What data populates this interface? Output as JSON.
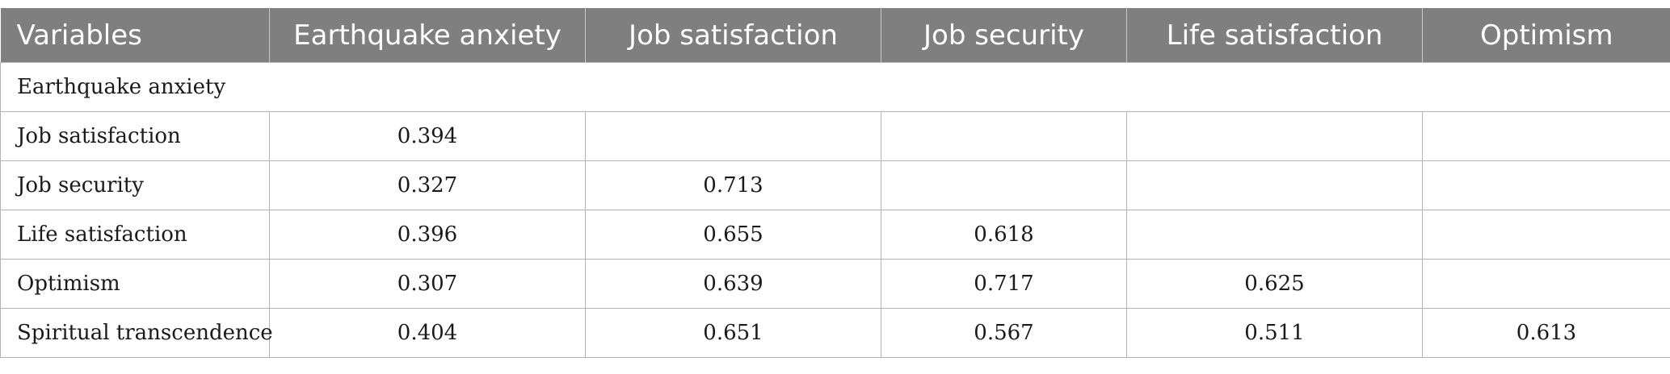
{
  "table": {
    "headers": [
      "Variables",
      "Earthquake anxiety",
      "Job satisfaction",
      "Job security",
      "Life satisfaction",
      "Optimism"
    ],
    "rows": [
      {
        "label": "Earthquake anxiety",
        "values": []
      },
      {
        "label": "Job satisfaction",
        "values": [
          "0.394",
          "",
          "",
          "",
          ""
        ]
      },
      {
        "label": "Job security",
        "values": [
          "0.327",
          "0.713",
          "",
          "",
          ""
        ]
      },
      {
        "label": "Life satisfaction",
        "values": [
          "0.396",
          "0.655",
          "0.618",
          "",
          ""
        ]
      },
      {
        "label": "Optimism",
        "values": [
          "0.307",
          "0.639",
          "0.717",
          "0.625",
          ""
        ]
      },
      {
        "label": "Spiritual transcendence",
        "values": [
          "0.404",
          "0.651",
          "0.567",
          "0.511",
          "0.613"
        ]
      }
    ]
  }
}
